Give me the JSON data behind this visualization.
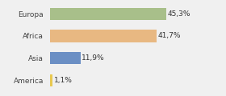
{
  "categories": [
    "Europa",
    "Africa",
    "Asia",
    "America"
  ],
  "values": [
    45.3,
    41.7,
    11.9,
    1.1
  ],
  "labels": [
    "45,3%",
    "41,7%",
    "11,9%",
    "1,1%"
  ],
  "bar_colors": [
    "#a8bf8a",
    "#e8b882",
    "#6b8fc4",
    "#e8c850"
  ],
  "background_color": "#f0f0f0",
  "xlim": [
    0,
    58
  ],
  "figsize": [
    2.8,
    1.2
  ],
  "dpi": 100,
  "bar_height": 0.55
}
